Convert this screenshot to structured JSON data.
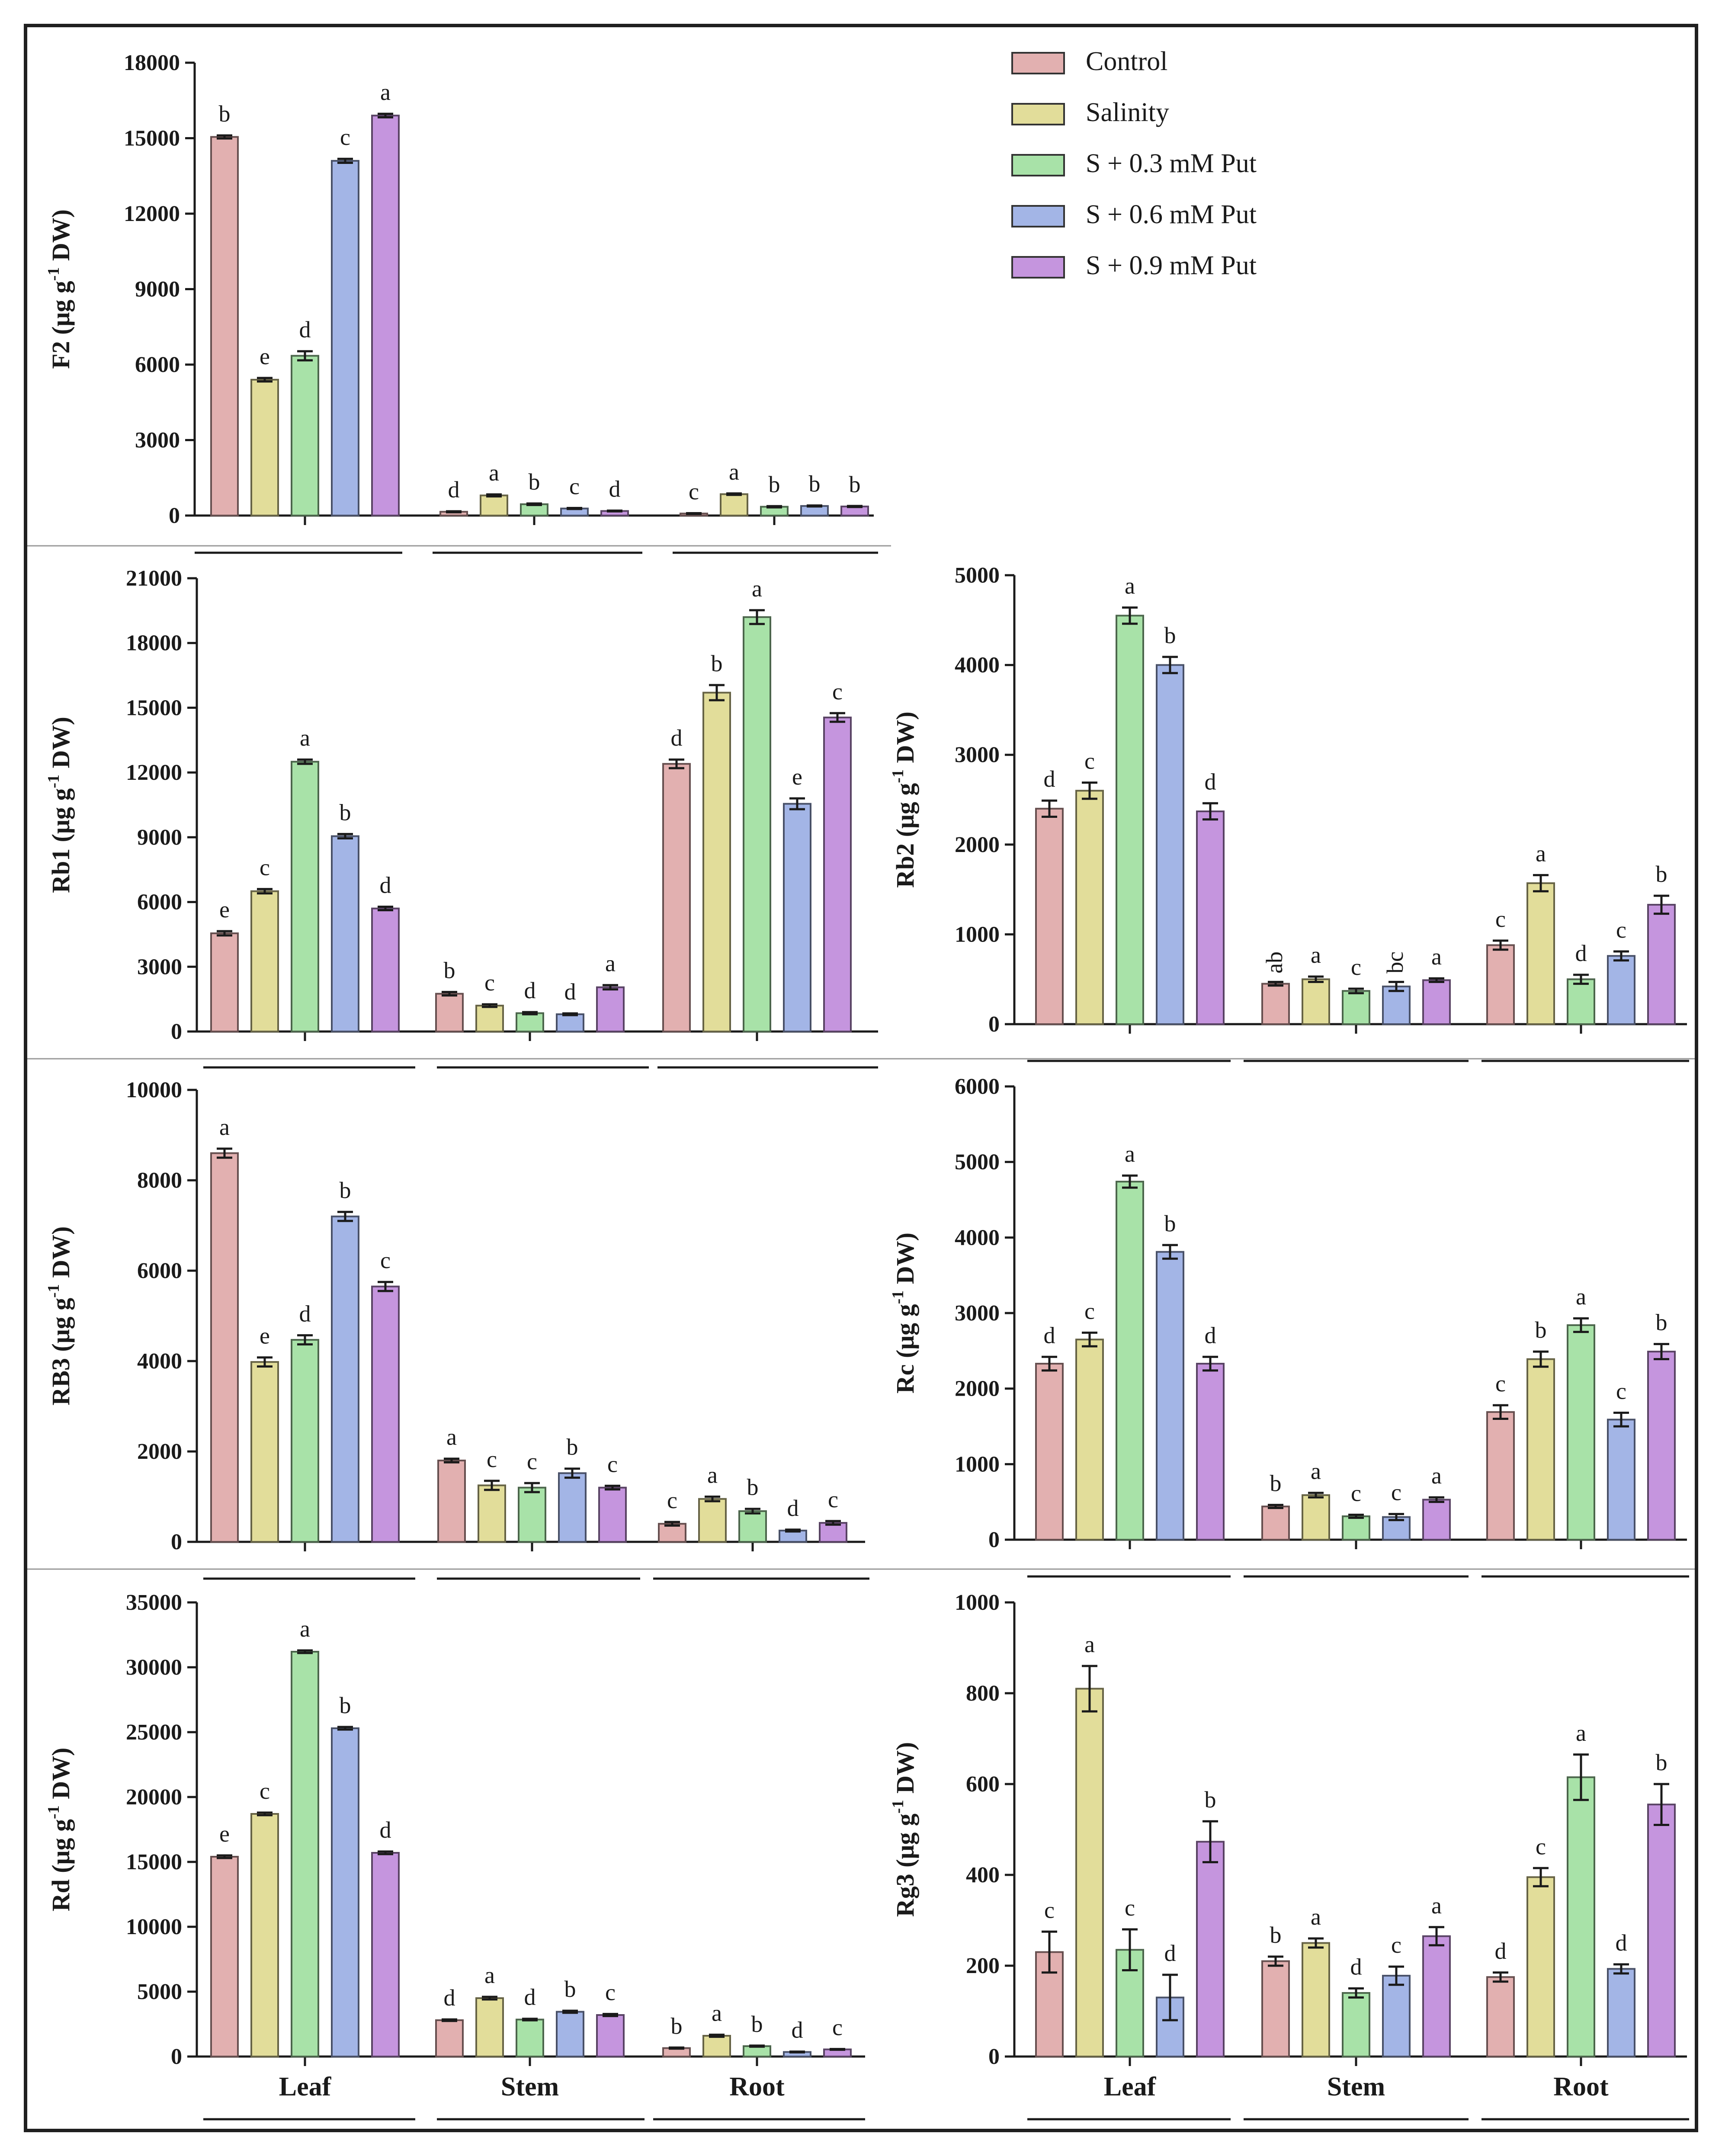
{
  "legend": {
    "entries": [
      {
        "name": "Control",
        "color": "#e2b0b0"
      },
      {
        "name": "Salinity",
        "color": "#e2dd9a"
      },
      {
        "name": "S + 0.3 mM Put",
        "color": "#a8e2a8"
      },
      {
        "name": "S + 0.6 mM Put",
        "color": "#a3b5e6"
      },
      {
        "name": "S + 0.9 mM Put",
        "color": "#c595de"
      }
    ]
  },
  "chart_data": [
    {
      "type": "bar",
      "panel": "F2",
      "ylabel_main": "F2 (μg g",
      "ylabel_sup": "-1",
      "ylabel_tail": " DW)",
      "ylim": [
        0,
        18000
      ],
      "yticks": [
        0,
        3000,
        6000,
        9000,
        12000,
        15000,
        18000
      ],
      "yticklabels": [
        "0",
        "3000",
        "6000",
        "9000",
        "12000",
        "15000",
        "18000"
      ],
      "group_labels": [
        "",
        "",
        ""
      ],
      "series": [
        {
          "name": "Control",
          "values": [
            15050,
            150,
            80
          ],
          "errors": [
            60,
            20,
            15
          ],
          "letters": [
            "b",
            "d",
            "c"
          ]
        },
        {
          "name": "Salinity",
          "values": [
            5400,
            800,
            850
          ],
          "errors": [
            70,
            40,
            30
          ],
          "letters": [
            "e",
            "a",
            "a"
          ]
        },
        {
          "name": "S + 0.3 mM Put",
          "values": [
            6350,
            450,
            350
          ],
          "errors": [
            180,
            30,
            25
          ],
          "letters": [
            "d",
            "b",
            "b"
          ]
        },
        {
          "name": "S + 0.6 mM Put",
          "values": [
            14100,
            280,
            380
          ],
          "errors": [
            80,
            20,
            20
          ],
          "letters": [
            "c",
            "c",
            "b"
          ]
        },
        {
          "name": "S + 0.9 mM Put",
          "values": [
            15900,
            180,
            360
          ],
          "errors": [
            70,
            15,
            20
          ],
          "letters": [
            "a",
            "d",
            "b"
          ]
        }
      ]
    },
    {
      "type": "bar",
      "panel": "Rb1",
      "ylabel_main": "Rb1 (μg g",
      "ylabel_sup": "-1",
      "ylabel_tail": " DW)",
      "ylim": [
        0,
        21000
      ],
      "yticks": [
        0,
        3000,
        6000,
        9000,
        12000,
        15000,
        18000,
        21000
      ],
      "yticklabels": [
        "0",
        "3000",
        "6000",
        "9000",
        "12000",
        "15000",
        "18000",
        "21000"
      ],
      "group_labels": [
        "",
        "",
        ""
      ],
      "series": [
        {
          "name": "Control",
          "values": [
            4550,
            1750,
            12400
          ],
          "errors": [
            100,
            80,
            200
          ],
          "letters": [
            "e",
            "b",
            "d"
          ]
        },
        {
          "name": "Salinity",
          "values": [
            6500,
            1200,
            15700
          ],
          "errors": [
            100,
            60,
            350
          ],
          "letters": [
            "c",
            "c",
            "b"
          ]
        },
        {
          "name": "S + 0.3 mM Put",
          "values": [
            12500,
            850,
            19200
          ],
          "errors": [
            100,
            50,
            320
          ],
          "letters": [
            "a",
            "d",
            "a"
          ]
        },
        {
          "name": "S + 0.6 mM Put",
          "values": [
            9050,
            800,
            10550
          ],
          "errors": [
            100,
            40,
            250
          ],
          "letters": [
            "b",
            "d",
            "e"
          ]
        },
        {
          "name": "S + 0.9 mM Put",
          "values": [
            5700,
            2050,
            14550
          ],
          "errors": [
            80,
            100,
            200
          ],
          "letters": [
            "d",
            "a",
            "c"
          ]
        }
      ]
    },
    {
      "type": "bar",
      "panel": "Rb2",
      "ylabel_main": "Rb2 (μg g",
      "ylabel_sup": "-1",
      "ylabel_tail": " DW)",
      "ylim": [
        0,
        5000
      ],
      "yticks": [
        0,
        1000,
        2000,
        3000,
        4000,
        5000
      ],
      "yticklabels": [
        "0",
        "1000",
        "2000",
        "3000",
        "4000",
        "5000"
      ],
      "group_labels": [
        "",
        "",
        ""
      ],
      "series": [
        {
          "name": "Control",
          "values": [
            2400,
            450,
            880
          ],
          "errors": [
            90,
            20,
            50
          ],
          "letters": [
            "d",
            "ab",
            "c"
          ]
        },
        {
          "name": "Salinity",
          "values": [
            2600,
            500,
            1570
          ],
          "errors": [
            90,
            30,
            90
          ],
          "letters": [
            "c",
            "a",
            "a"
          ]
        },
        {
          "name": "S + 0.3 mM Put",
          "values": [
            4550,
            370,
            500
          ],
          "errors": [
            90,
            25,
            50
          ],
          "letters": [
            "a",
            "c",
            "d"
          ]
        },
        {
          "name": "S + 0.6 mM Put",
          "values": [
            4000,
            420,
            760
          ],
          "errors": [
            90,
            50,
            50
          ],
          "letters": [
            "b",
            "bc",
            "c"
          ]
        },
        {
          "name": "S + 0.9 mM Put",
          "values": [
            2370,
            490,
            1330
          ],
          "errors": [
            90,
            20,
            100
          ],
          "letters": [
            "d",
            "a",
            "b"
          ]
        }
      ]
    },
    {
      "type": "bar",
      "panel": "RB3",
      "ylabel_main": "RB3 (μg g",
      "ylabel_sup": "-1",
      "ylabel_tail": " DW)",
      "ylim": [
        0,
        10000
      ],
      "yticks": [
        0,
        2000,
        4000,
        6000,
        8000,
        10000
      ],
      "yticklabels": [
        "0",
        "2000",
        "4000",
        "6000",
        "8000",
        "10000"
      ],
      "group_labels": [
        "",
        "",
        ""
      ],
      "series": [
        {
          "name": "Control",
          "values": [
            8600,
            1800,
            400
          ],
          "errors": [
            100,
            40,
            40
          ],
          "letters": [
            "a",
            "a",
            "c"
          ]
        },
        {
          "name": "Salinity",
          "values": [
            3980,
            1250,
            950
          ],
          "errors": [
            100,
            100,
            50
          ],
          "letters": [
            "e",
            "c",
            "a"
          ]
        },
        {
          "name": "S + 0.3 mM Put",
          "values": [
            4470,
            1200,
            680
          ],
          "errors": [
            100,
            100,
            50
          ],
          "letters": [
            "d",
            "c",
            "b"
          ]
        },
        {
          "name": "S + 0.6 mM Put",
          "values": [
            7200,
            1520,
            250
          ],
          "errors": [
            100,
            100,
            20
          ],
          "letters": [
            "b",
            "b",
            "d"
          ]
        },
        {
          "name": "S + 0.9 mM Put",
          "values": [
            5650,
            1200,
            420
          ],
          "errors": [
            100,
            40,
            40
          ],
          "letters": [
            "c",
            "c",
            "c"
          ]
        }
      ]
    },
    {
      "type": "bar",
      "panel": "Rc",
      "ylabel_main": "Rc (μg g",
      "ylabel_sup": "-1",
      "ylabel_tail": " DW)",
      "ylim": [
        0,
        6000
      ],
      "yticks": [
        0,
        1000,
        2000,
        3000,
        4000,
        5000,
        6000
      ],
      "yticklabels": [
        "0",
        "1000",
        "2000",
        "3000",
        "4000",
        "5000",
        "6000"
      ],
      "group_labels": [
        "",
        "",
        ""
      ],
      "series": [
        {
          "name": "Control",
          "values": [
            2330,
            440,
            1690
          ],
          "errors": [
            90,
            20,
            90
          ],
          "letters": [
            "d",
            "b",
            "c"
          ]
        },
        {
          "name": "Salinity",
          "values": [
            2650,
            590,
            2390
          ],
          "errors": [
            90,
            30,
            100
          ],
          "letters": [
            "c",
            "a",
            "b"
          ]
        },
        {
          "name": "S + 0.3 mM Put",
          "values": [
            4740,
            310,
            2840
          ],
          "errors": [
            80,
            20,
            90
          ],
          "letters": [
            "a",
            "c",
            "a"
          ]
        },
        {
          "name": "S + 0.6 mM Put",
          "values": [
            3810,
            300,
            1590
          ],
          "errors": [
            90,
            40,
            90
          ],
          "letters": [
            "b",
            "c",
            "c"
          ]
        },
        {
          "name": "S + 0.9 mM Put",
          "values": [
            2330,
            530,
            2490
          ],
          "errors": [
            90,
            30,
            100
          ],
          "letters": [
            "d",
            "a",
            "b"
          ]
        }
      ]
    },
    {
      "type": "bar",
      "panel": "Rd",
      "ylabel_main": "Rd (μg g",
      "ylabel_sup": "-1",
      "ylabel_tail": " DW)",
      "ylim": [
        0,
        35000
      ],
      "yticks": [
        0,
        5000,
        10000,
        15000,
        20000,
        25000,
        30000,
        35000
      ],
      "yticklabels": [
        "0",
        "5000",
        "10000",
        "15000",
        "20000",
        "25000",
        "30000",
        "35000"
      ],
      "group_labels": [
        "Leaf",
        "Stem",
        "Root"
      ],
      "series": [
        {
          "name": "Control",
          "values": [
            15400,
            2800,
            650
          ],
          "errors": [
            100,
            60,
            40
          ],
          "letters": [
            "e",
            "d",
            "b"
          ]
        },
        {
          "name": "Salinity",
          "values": [
            18700,
            4500,
            1600
          ],
          "errors": [
            100,
            100,
            80
          ],
          "letters": [
            "c",
            "a",
            "a"
          ]
        },
        {
          "name": "S + 0.3 mM Put",
          "values": [
            31200,
            2850,
            800
          ],
          "errors": [
            100,
            60,
            40
          ],
          "letters": [
            "a",
            "d",
            "b"
          ]
        },
        {
          "name": "S + 0.6 mM Put",
          "values": [
            25300,
            3450,
            350
          ],
          "errors": [
            100,
            80,
            30
          ],
          "letters": [
            "b",
            "b",
            "d"
          ]
        },
        {
          "name": "S + 0.9 mM Put",
          "values": [
            15700,
            3200,
            550
          ],
          "errors": [
            100,
            80,
            30
          ],
          "letters": [
            "d",
            "c",
            "c"
          ]
        }
      ]
    },
    {
      "type": "bar",
      "panel": "Rg3",
      "ylabel_main": "Rg3 (μg g",
      "ylabel_sup": "-1",
      "ylabel_tail": " DW)",
      "ylim": [
        0,
        1000
      ],
      "yticks": [
        0,
        200,
        400,
        600,
        800,
        1000
      ],
      "yticklabels": [
        "0",
        "200",
        "400",
        "600",
        "800",
        "1000"
      ],
      "group_labels": [
        "Leaf",
        "Stem",
        "Root"
      ],
      "series": [
        {
          "name": "Control",
          "values": [
            230,
            210,
            175
          ],
          "errors": [
            45,
            10,
            10
          ],
          "letters": [
            "c",
            "b",
            "d"
          ]
        },
        {
          "name": "Salinity",
          "values": [
            810,
            250,
            395
          ],
          "errors": [
            50,
            10,
            20
          ],
          "letters": [
            "a",
            "a",
            "c"
          ]
        },
        {
          "name": "S + 0.3 mM Put",
          "values": [
            235,
            140,
            615
          ],
          "errors": [
            45,
            10,
            50
          ],
          "letters": [
            "c",
            "d",
            "a"
          ]
        },
        {
          "name": "S + 0.6 mM Put",
          "values": [
            130,
            178,
            193
          ],
          "errors": [
            50,
            20,
            10
          ],
          "letters": [
            "d",
            "c",
            "d"
          ]
        },
        {
          "name": "S + 0.9 mM Put",
          "values": [
            473,
            265,
            555
          ],
          "errors": [
            45,
            20,
            45
          ],
          "letters": [
            "b",
            "a",
            "b"
          ]
        }
      ]
    }
  ]
}
